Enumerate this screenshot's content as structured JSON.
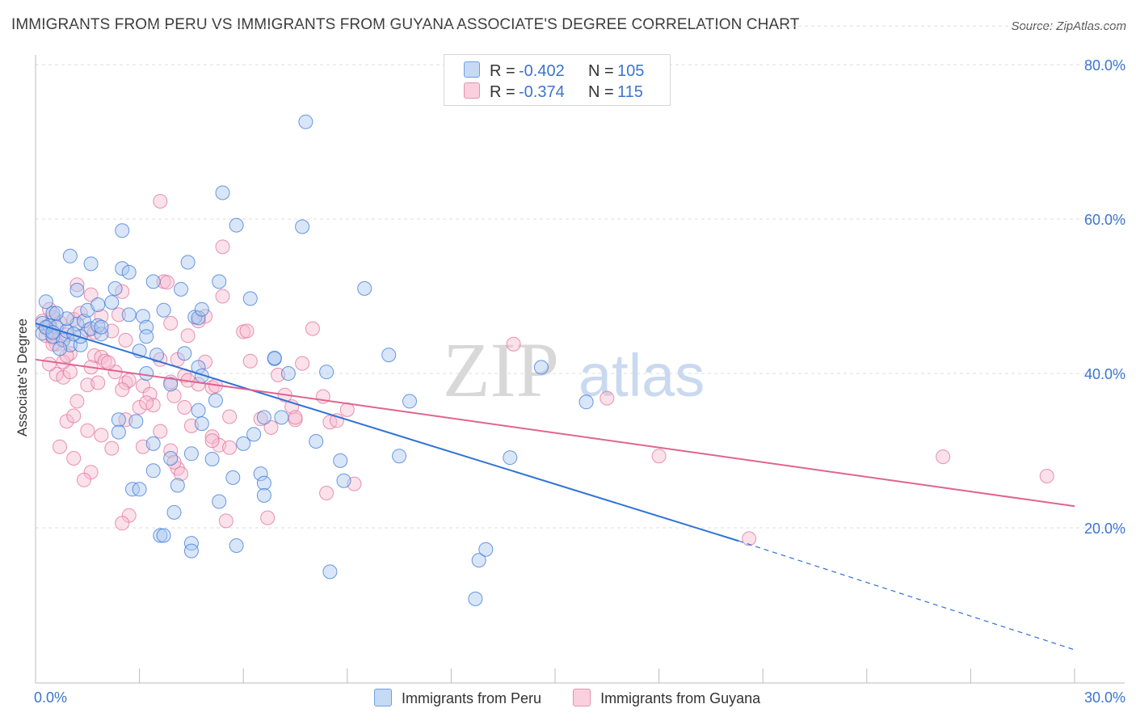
{
  "title": "IMMIGRANTS FROM PERU VS IMMIGRANTS FROM GUYANA ASSOCIATE'S DEGREE CORRELATION CHART",
  "source": "Source: ZipAtlas.com",
  "watermark": {
    "zip": "ZIP",
    "atlas": "atlas"
  },
  "legend_top": {
    "rows": [
      {
        "r_label": "R =",
        "r_value": "-0.402",
        "n_label": "N =",
        "n_value": "105"
      },
      {
        "r_label": "R =",
        "r_value": "-0.374",
        "n_label": "N =",
        "n_value": "115"
      }
    ]
  },
  "colors": {
    "peru_fill": "#aac8f0",
    "peru_stroke": "#3a78d8",
    "peru_line": "#2f72d6",
    "guyana_fill": "#f7bcd0",
    "guyana_stroke": "#e0709a",
    "guyana_line": "#e0648f",
    "axis_label": "#3b74d1",
    "grid": "#dddddd"
  },
  "chart_data": {
    "type": "scatter",
    "title": "IMMIGRANTS FROM PERU VS IMMIGRANTS FROM GUYANA ASSOCIATE'S DEGREE CORRELATION CHART",
    "xlabel": "",
    "ylabel": "Associate's Degree",
    "xlim": [
      0,
      30
    ],
    "ylim": [
      0,
      85
    ],
    "x_tick_labels": [
      "0.0%",
      "30.0%"
    ],
    "y_ticks": [
      20,
      40,
      60,
      80
    ],
    "y_tick_labels": [
      "20.0%",
      "40.0%",
      "60.0%",
      "80.0%"
    ],
    "grid": true,
    "legend_position": "top-center and bottom",
    "series": [
      {
        "name": "Immigrants from Peru",
        "R": -0.402,
        "N": 105,
        "trend": {
          "x0": 0,
          "y0": 46.5,
          "x1": 20.3,
          "y1": 18.3,
          "dashed_to_x": 30,
          "dashed_to_y": 4.2
        },
        "points": [
          [
            0.3,
            49.3
          ],
          [
            0.5,
            47.8
          ],
          [
            0.2,
            46.5
          ],
          [
            0.4,
            46.2
          ],
          [
            0.6,
            46.0
          ],
          [
            0.2,
            45.2
          ],
          [
            0.5,
            44.8
          ],
          [
            0.8,
            44.3
          ],
          [
            1.0,
            43.7
          ],
          [
            1.2,
            46.4
          ],
          [
            1.4,
            46.8
          ],
          [
            1.6,
            45.8
          ],
          [
            1.9,
            45.1
          ],
          [
            1.5,
            48.2
          ],
          [
            1.8,
            48.9
          ],
          [
            2.2,
            49.2
          ],
          [
            0.7,
            43.2
          ],
          [
            1.3,
            43.7
          ],
          [
            1.0,
            55.2
          ],
          [
            1.6,
            54.2
          ],
          [
            2.5,
            53.6
          ],
          [
            2.3,
            51.0
          ],
          [
            1.2,
            50.8
          ],
          [
            2.7,
            53.1
          ],
          [
            3.4,
            51.9
          ],
          [
            4.2,
            50.9
          ],
          [
            5.3,
            51.9
          ],
          [
            6.2,
            49.7
          ],
          [
            2.5,
            58.5
          ],
          [
            3.1,
            47.4
          ],
          [
            3.7,
            48.2
          ],
          [
            4.6,
            47.3
          ],
          [
            3.2,
            46.0
          ],
          [
            3.2,
            44.8
          ],
          [
            4.7,
            47.2
          ],
          [
            4.8,
            48.3
          ],
          [
            2.7,
            47.6
          ],
          [
            4.4,
            54.4
          ],
          [
            5.4,
            63.4
          ],
          [
            5.8,
            59.2
          ],
          [
            7.7,
            59.0
          ],
          [
            7.8,
            72.6
          ],
          [
            9.5,
            51.0
          ],
          [
            3.0,
            42.9
          ],
          [
            3.5,
            42.4
          ],
          [
            4.3,
            42.6
          ],
          [
            3.2,
            40.0
          ],
          [
            4.7,
            40.8
          ],
          [
            4.8,
            39.7
          ],
          [
            3.9,
            38.6
          ],
          [
            5.2,
            36.5
          ],
          [
            4.7,
            35.2
          ],
          [
            4.8,
            33.5
          ],
          [
            2.4,
            34.0
          ],
          [
            2.4,
            32.4
          ],
          [
            5.1,
            28.9
          ],
          [
            3.4,
            30.9
          ],
          [
            3.4,
            27.4
          ],
          [
            3.9,
            29.0
          ],
          [
            4.5,
            29.6
          ],
          [
            4.1,
            25.5
          ],
          [
            2.8,
            25.0
          ],
          [
            3.0,
            25.0
          ],
          [
            5.7,
            26.5
          ],
          [
            5.3,
            23.4
          ],
          [
            6.0,
            30.9
          ],
          [
            6.3,
            32.1
          ],
          [
            6.6,
            34.3
          ],
          [
            6.9,
            41.9
          ],
          [
            7.1,
            34.3
          ],
          [
            8.4,
            40.2
          ],
          [
            8.1,
            31.2
          ],
          [
            6.5,
            27.0
          ],
          [
            6.6,
            25.8
          ],
          [
            6.6,
            24.2
          ],
          [
            8.8,
            28.7
          ],
          [
            8.9,
            26.1
          ],
          [
            10.2,
            42.4
          ],
          [
            10.8,
            36.4
          ],
          [
            10.5,
            29.3
          ],
          [
            14.6,
            40.8
          ],
          [
            15.9,
            36.3
          ],
          [
            13.7,
            29.1
          ],
          [
            12.8,
            15.8
          ],
          [
            13.0,
            17.2
          ],
          [
            8.5,
            14.3
          ],
          [
            12.7,
            10.8
          ],
          [
            3.6,
            19.0
          ],
          [
            3.7,
            19.0
          ],
          [
            4.5,
            18.0
          ],
          [
            4.5,
            17.0
          ],
          [
            5.8,
            17.7
          ],
          [
            4.0,
            22.0
          ],
          [
            0.9,
            45.5
          ],
          [
            1.8,
            46.2
          ],
          [
            6.9,
            42.0
          ],
          [
            2.9,
            33.8
          ],
          [
            1.3,
            44.8
          ],
          [
            1.9,
            46.0
          ],
          [
            0.3,
            46.0
          ],
          [
            0.5,
            45.3
          ],
          [
            0.9,
            47.1
          ],
          [
            1.1,
            45.1
          ],
          [
            0.6,
            47.8
          ],
          [
            7.3,
            40.0
          ]
        ]
      },
      {
        "name": "Immigrants from Guyana",
        "R": -0.374,
        "N": 115,
        "trend": {
          "x0": 0,
          "y0": 41.8,
          "x1": 30,
          "y1": 22.8
        },
        "points": [
          [
            0.2,
            46.8
          ],
          [
            0.3,
            45.9
          ],
          [
            0.4,
            45.5
          ],
          [
            0.5,
            44.6
          ],
          [
            0.6,
            43.8
          ],
          [
            0.8,
            44.4
          ],
          [
            0.3,
            44.9
          ],
          [
            0.5,
            47.3
          ],
          [
            0.4,
            48.3
          ],
          [
            0.7,
            46.6
          ],
          [
            0.9,
            45.0
          ],
          [
            1.1,
            47.0
          ],
          [
            1.3,
            47.8
          ],
          [
            1.5,
            45.6
          ],
          [
            1.7,
            45.3
          ],
          [
            1.9,
            47.4
          ],
          [
            2.2,
            45.5
          ],
          [
            2.4,
            47.6
          ],
          [
            1.2,
            51.5
          ],
          [
            1.6,
            50.2
          ],
          [
            2.5,
            50.6
          ],
          [
            3.7,
            51.9
          ],
          [
            3.8,
            51.8
          ],
          [
            3.6,
            62.3
          ],
          [
            5.4,
            56.4
          ],
          [
            5.4,
            50.0
          ],
          [
            4.9,
            47.4
          ],
          [
            3.9,
            46.5
          ],
          [
            4.4,
            44.9
          ],
          [
            4.7,
            46.8
          ],
          [
            6.0,
            45.4
          ],
          [
            8.0,
            45.8
          ],
          [
            13.8,
            43.8
          ],
          [
            1.0,
            42.6
          ],
          [
            1.7,
            42.3
          ],
          [
            1.9,
            42.1
          ],
          [
            2.0,
            41.6
          ],
          [
            2.3,
            40.2
          ],
          [
            2.6,
            38.8
          ],
          [
            2.7,
            39.1
          ],
          [
            3.1,
            38.4
          ],
          [
            3.6,
            41.8
          ],
          [
            4.1,
            41.8
          ],
          [
            4.3,
            39.7
          ],
          [
            4.7,
            38.6
          ],
          [
            4.9,
            41.5
          ],
          [
            5.1,
            38.2
          ],
          [
            5.2,
            38.4
          ],
          [
            6.2,
            41.6
          ],
          [
            7.0,
            39.8
          ],
          [
            7.7,
            41.3
          ],
          [
            0.6,
            39.9
          ],
          [
            0.8,
            39.5
          ],
          [
            1.0,
            40.2
          ],
          [
            1.2,
            36.4
          ],
          [
            1.5,
            38.5
          ],
          [
            1.8,
            38.8
          ],
          [
            2.5,
            37.9
          ],
          [
            0.9,
            33.8
          ],
          [
            1.1,
            34.5
          ],
          [
            1.5,
            32.6
          ],
          [
            1.9,
            32.0
          ],
          [
            2.2,
            30.3
          ],
          [
            2.6,
            34.0
          ],
          [
            3.0,
            35.6
          ],
          [
            3.3,
            37.3
          ],
          [
            3.4,
            35.9
          ],
          [
            4.0,
            37.1
          ],
          [
            4.3,
            35.6
          ],
          [
            4.5,
            33.2
          ],
          [
            3.6,
            32.5
          ],
          [
            3.9,
            30.0
          ],
          [
            3.1,
            30.5
          ],
          [
            5.1,
            31.8
          ],
          [
            5.6,
            34.4
          ],
          [
            6.5,
            34.1
          ],
          [
            6.8,
            33.0
          ],
          [
            7.2,
            37.2
          ],
          [
            7.4,
            35.7
          ],
          [
            7.5,
            34.0
          ],
          [
            8.5,
            33.7
          ],
          [
            8.7,
            33.9
          ],
          [
            9.0,
            35.3
          ],
          [
            2.7,
            21.6
          ],
          [
            2.5,
            20.6
          ],
          [
            4.1,
            27.7
          ],
          [
            4.2,
            27.0
          ],
          [
            5.3,
            30.7
          ],
          [
            5.5,
            20.9
          ],
          [
            6.7,
            21.3
          ],
          [
            8.4,
            24.5
          ],
          [
            9.2,
            25.7
          ],
          [
            16.5,
            36.8
          ],
          [
            18.0,
            29.3
          ],
          [
            26.2,
            29.2
          ],
          [
            29.2,
            26.7
          ],
          [
            20.6,
            18.6
          ],
          [
            1.6,
            27.2
          ],
          [
            1.4,
            26.2
          ],
          [
            0.7,
            30.5
          ],
          [
            1.1,
            29.0
          ],
          [
            6.1,
            45.5
          ],
          [
            7.5,
            34.3
          ],
          [
            8.3,
            37.0
          ],
          [
            0.4,
            41.2
          ],
          [
            0.8,
            41.5
          ],
          [
            3.2,
            36.2
          ],
          [
            5.1,
            31.3
          ],
          [
            1.6,
            40.8
          ],
          [
            2.1,
            41.4
          ],
          [
            3.9,
            38.9
          ],
          [
            4.4,
            39.1
          ],
          [
            0.5,
            43.8
          ],
          [
            2.6,
            44.3
          ],
          [
            0.9,
            42.3
          ],
          [
            5.6,
            30.4
          ],
          [
            4.0,
            28.5
          ]
        ]
      }
    ]
  },
  "legend_bottom": [
    {
      "label": "Immigrants from Peru"
    },
    {
      "label": "Immigrants from Guyana"
    }
  ]
}
